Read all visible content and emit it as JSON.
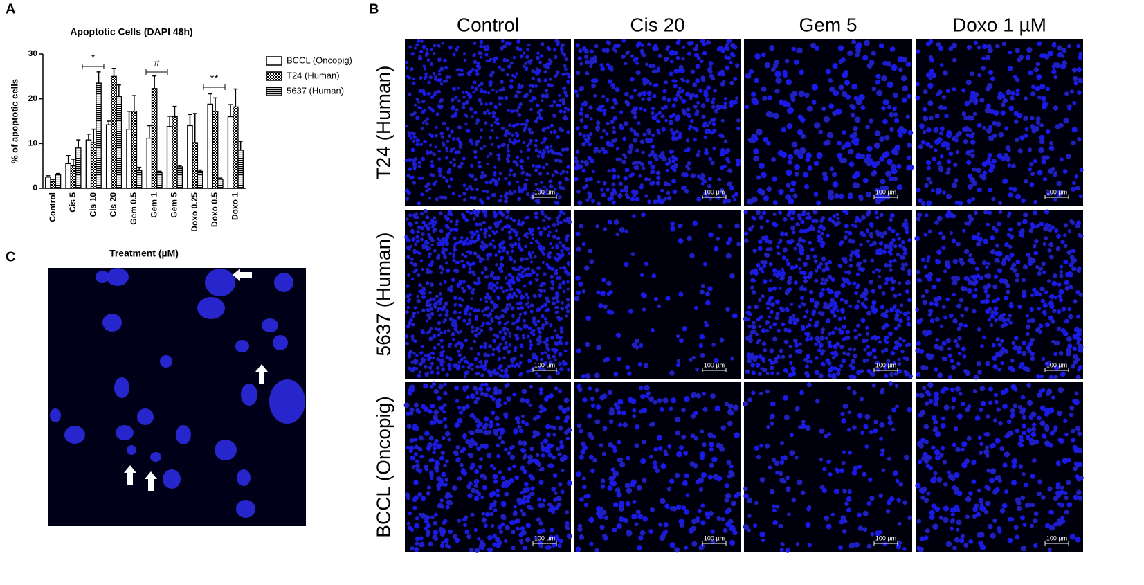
{
  "panel_labels": [
    "A",
    "B",
    "C"
  ],
  "chart_data": {
    "type": "bar",
    "title": "Apoptotic Cells (DAPI 48h)",
    "x_label": "Treatment (µM)",
    "y_label": "% of apoptotic cells",
    "categories": [
      "Control",
      "Cis 5",
      "Cis 10",
      "Cis 20",
      "Gem 0.5",
      "Gem 1",
      "Gem 5",
      "Doxo 0.25",
      "Doxo 0.5",
      "Doxo 1"
    ],
    "series": [
      {
        "name": "BCCL (Oncopig)",
        "color": "#ffffff",
        "pattern": "solid",
        "values": [
          2.5,
          5.5,
          10.8,
          14.2,
          13.2,
          11.2,
          13.8,
          14.0,
          18.8,
          16.0
        ],
        "errors": [
          0.3,
          1.8,
          1.3,
          0.8,
          4.0,
          2.8,
          2.3,
          2.5,
          2.3,
          2.7
        ]
      },
      {
        "name": "T24 (Human)",
        "color": "#ffffff",
        "pattern": "checker",
        "values": [
          1.5,
          5.0,
          10.2,
          25.0,
          17.2,
          22.3,
          16.0,
          10.2,
          17.2,
          18.2
        ],
        "errors": [
          0.5,
          1.5,
          3.0,
          1.8,
          3.5,
          2.8,
          2.3,
          6.5,
          3.0,
          4.0
        ]
      },
      {
        "name": "5637 (Human)",
        "color": "#ffffff",
        "pattern": "hstripe",
        "values": [
          3.0,
          9.0,
          23.5,
          20.5,
          4.0,
          3.5,
          4.8,
          3.8,
          2.0,
          8.5
        ],
        "errors": [
          0.3,
          1.8,
          2.5,
          2.6,
          0.7,
          0.3,
          0.3,
          0.3,
          0.3,
          2.0
        ]
      }
    ],
    "annotations": [
      "*",
      "#",
      "**"
    ],
    "ylim": [
      0,
      30
    ],
    "yticks": [
      0,
      10,
      20,
      30
    ],
    "legend": "right"
  },
  "micrographs": {
    "columns": [
      "Control",
      "Cis 20",
      "Gem 5",
      "Doxo 1 µM"
    ],
    "rows": [
      "T24 (Human)",
      "5637 (Human)",
      "BCCL (Oncopig)"
    ],
    "scale_bar": "100 µm"
  }
}
